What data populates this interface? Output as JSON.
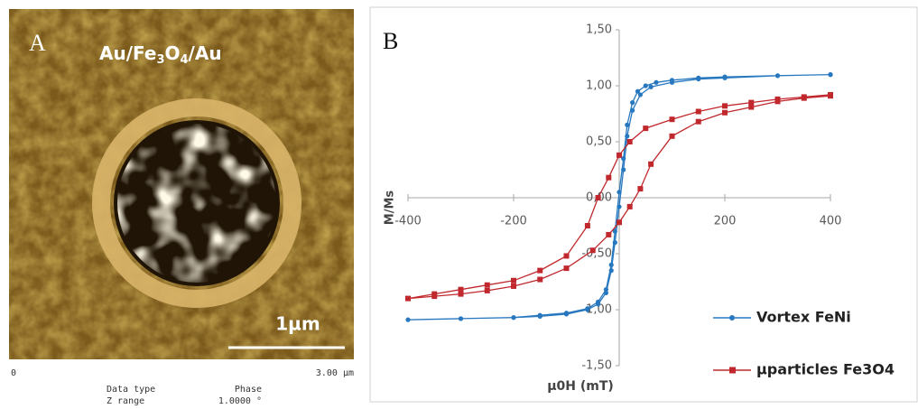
{
  "image_panel": {
    "label": "A",
    "title": "Au/Fe3O4/Au",
    "scale_bar": "1µm",
    "axis_start": "0",
    "axis_end": "3.00 µm",
    "info": [
      [
        "Data type",
        "Phase"
      ],
      [
        "Z range",
        "1.0000 °"
      ]
    ]
  },
  "chart_data": {
    "type": "line",
    "label": "B",
    "x_label": "µ0H (mT)",
    "y_label": "M/Ms",
    "xlim": [
      -400,
      400
    ],
    "ylim": [
      -1.5,
      1.5
    ],
    "xticks": [
      -400,
      -200,
      200,
      400
    ],
    "yticks": [
      {
        "value": 1.5,
        "label": "1,50"
      },
      {
        "value": 1.0,
        "label": "1,00"
      },
      {
        "value": 0.5,
        "label": "0,50"
      },
      {
        "value": 0,
        "label": "0,00"
      },
      {
        "value": -0.5,
        "label": "-0,50"
      },
      {
        "value": -1.0,
        "label": "-1,00"
      },
      {
        "value": -1.5,
        "label": "-1,50"
      }
    ],
    "grid": false,
    "series": [
      {
        "name": "Vortex FeNi",
        "color": "#2878c0",
        "marker": "circle",
        "x": [
          400,
          300,
          200,
          150,
          100,
          70,
          50,
          35,
          25,
          15,
          8,
          0,
          -8,
          -15,
          -25,
          -40,
          -60,
          -100,
          -150,
          -200,
          -300,
          -400,
          -300,
          -200,
          -150,
          -100,
          -60,
          -40,
          -25,
          -15,
          -8,
          0,
          8,
          15,
          25,
          40,
          60,
          100,
          150,
          200,
          300,
          400
        ],
        "values": [
          1.1,
          1.09,
          1.08,
          1.07,
          1.05,
          1.03,
          1.0,
          0.95,
          0.85,
          0.65,
          0.35,
          0.05,
          -0.3,
          -0.6,
          -0.82,
          -0.93,
          -0.99,
          -1.03,
          -1.05,
          -1.07,
          -1.08,
          -1.09,
          -1.08,
          -1.07,
          -1.06,
          -1.04,
          -1.0,
          -0.95,
          -0.85,
          -0.65,
          -0.4,
          -0.08,
          0.25,
          0.55,
          0.78,
          0.92,
          0.99,
          1.03,
          1.06,
          1.07,
          1.09,
          1.1
        ]
      },
      {
        "name": "µparticles Fe3O4",
        "color": "#c0282d",
        "marker": "square",
        "x": [
          400,
          350,
          300,
          250,
          200,
          150,
          100,
          50,
          20,
          0,
          -20,
          -40,
          -60,
          -100,
          -150,
          -200,
          -250,
          -300,
          -350,
          -400,
          -350,
          -300,
          -250,
          -200,
          -150,
          -100,
          -50,
          -20,
          0,
          20,
          40,
          60,
          100,
          150,
          200,
          250,
          300,
          350,
          400
        ],
        "values": [
          0.92,
          0.9,
          0.88,
          0.85,
          0.82,
          0.77,
          0.7,
          0.62,
          0.5,
          0.38,
          0.18,
          0.0,
          -0.25,
          -0.52,
          -0.65,
          -0.74,
          -0.78,
          -0.82,
          -0.86,
          -0.9,
          -0.88,
          -0.86,
          -0.83,
          -0.79,
          -0.73,
          -0.63,
          -0.47,
          -0.33,
          -0.22,
          -0.08,
          0.08,
          0.3,
          0.55,
          0.68,
          0.76,
          0.81,
          0.86,
          0.89,
          0.91
        ]
      }
    ]
  }
}
